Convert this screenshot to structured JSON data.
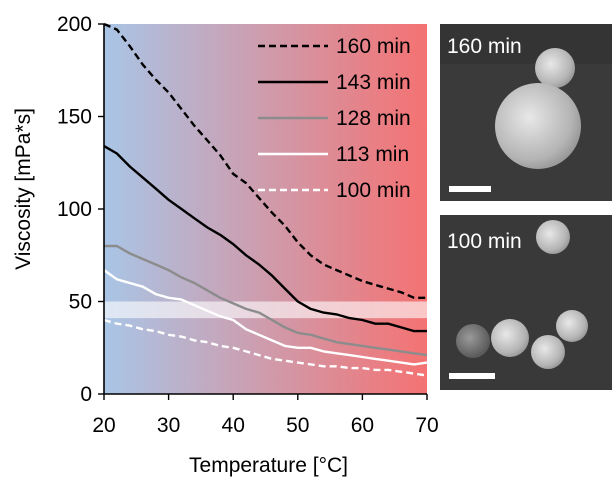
{
  "chart_data": {
    "type": "line",
    "xlabel": "Temperature [°C]",
    "ylabel": "Viscosity [mPa*s]",
    "xlim": [
      20,
      70
    ],
    "ylim": [
      0,
      200
    ],
    "xticks": [
      20,
      30,
      40,
      50,
      60,
      70
    ],
    "yticks": [
      0,
      50,
      100,
      150,
      200
    ],
    "grid": false,
    "legend": "top-right",
    "background_gradient": {
      "from": "#a9c5e6",
      "to": "#f47272"
    },
    "highlight_band": {
      "y_range": [
        41,
        50
      ],
      "color": "#ffffff"
    },
    "series": [
      {
        "name": "160 min",
        "style": "dashed",
        "color": "#000000",
        "x": [
          20,
          22,
          24,
          26,
          28,
          30,
          32,
          34,
          36,
          38,
          40,
          42,
          44,
          46,
          48,
          50,
          52,
          54,
          56,
          58,
          60,
          62,
          64,
          66,
          68,
          70
        ],
        "y": [
          200,
          197,
          188,
          178,
          170,
          163,
          154,
          145,
          137,
          129,
          119,
          114,
          106,
          98,
          91,
          82,
          75,
          70,
          67,
          64,
          61,
          59,
          57,
          55,
          52,
          52
        ]
      },
      {
        "name": "143 min",
        "style": "solid",
        "color": "#000000",
        "x": [
          20,
          22,
          24,
          26,
          28,
          30,
          32,
          34,
          36,
          38,
          40,
          42,
          44,
          46,
          48,
          50,
          52,
          54,
          56,
          58,
          60,
          62,
          64,
          66,
          68,
          70
        ],
        "y": [
          134,
          130,
          123,
          117,
          111,
          105,
          100,
          95,
          90,
          86,
          81,
          75,
          70,
          64,
          57,
          50,
          46,
          44,
          43,
          41,
          40,
          38,
          38,
          36,
          34,
          34
        ]
      },
      {
        "name": "128 min",
        "style": "solid",
        "color": "#8c8c8c",
        "x": [
          20,
          22,
          24,
          26,
          28,
          30,
          32,
          34,
          36,
          38,
          40,
          42,
          44,
          46,
          48,
          50,
          52,
          54,
          56,
          58,
          60,
          62,
          64,
          66,
          68,
          70
        ],
        "y": [
          80,
          80,
          76,
          73,
          70,
          67,
          63,
          60,
          56,
          52,
          49,
          46,
          44,
          40,
          36,
          33,
          32,
          30,
          28,
          27,
          26,
          25,
          24,
          23,
          22,
          21
        ]
      },
      {
        "name": "113 min",
        "style": "solid",
        "color": "#ffffff",
        "x": [
          20,
          22,
          24,
          26,
          28,
          30,
          32,
          34,
          36,
          38,
          40,
          42,
          44,
          46,
          48,
          50,
          52,
          54,
          56,
          58,
          60,
          62,
          64,
          66,
          68,
          70
        ],
        "y": [
          67,
          62,
          60,
          58,
          54,
          52,
          51,
          48,
          45,
          42,
          40,
          35,
          32,
          29,
          26,
          25,
          25,
          23,
          22,
          21,
          20,
          19,
          18,
          17,
          16,
          17
        ]
      },
      {
        "name": "100 min",
        "style": "dashed",
        "color": "#ffffff",
        "x": [
          20,
          22,
          24,
          26,
          28,
          30,
          32,
          34,
          36,
          38,
          40,
          42,
          44,
          46,
          48,
          50,
          52,
          54,
          56,
          58,
          60,
          62,
          64,
          66,
          68,
          70
        ],
        "y": [
          40,
          38,
          37,
          35,
          34,
          32,
          31,
          29,
          28,
          26,
          25,
          23,
          21,
          19,
          18,
          17,
          16,
          15,
          15,
          14,
          14,
          13,
          13,
          12,
          11,
          10
        ]
      }
    ]
  },
  "panels": [
    {
      "label": "160 min",
      "scale_bar_color": "#ffffff"
    },
    {
      "label": "100 min",
      "scale_bar_color": "#ffffff"
    }
  ]
}
